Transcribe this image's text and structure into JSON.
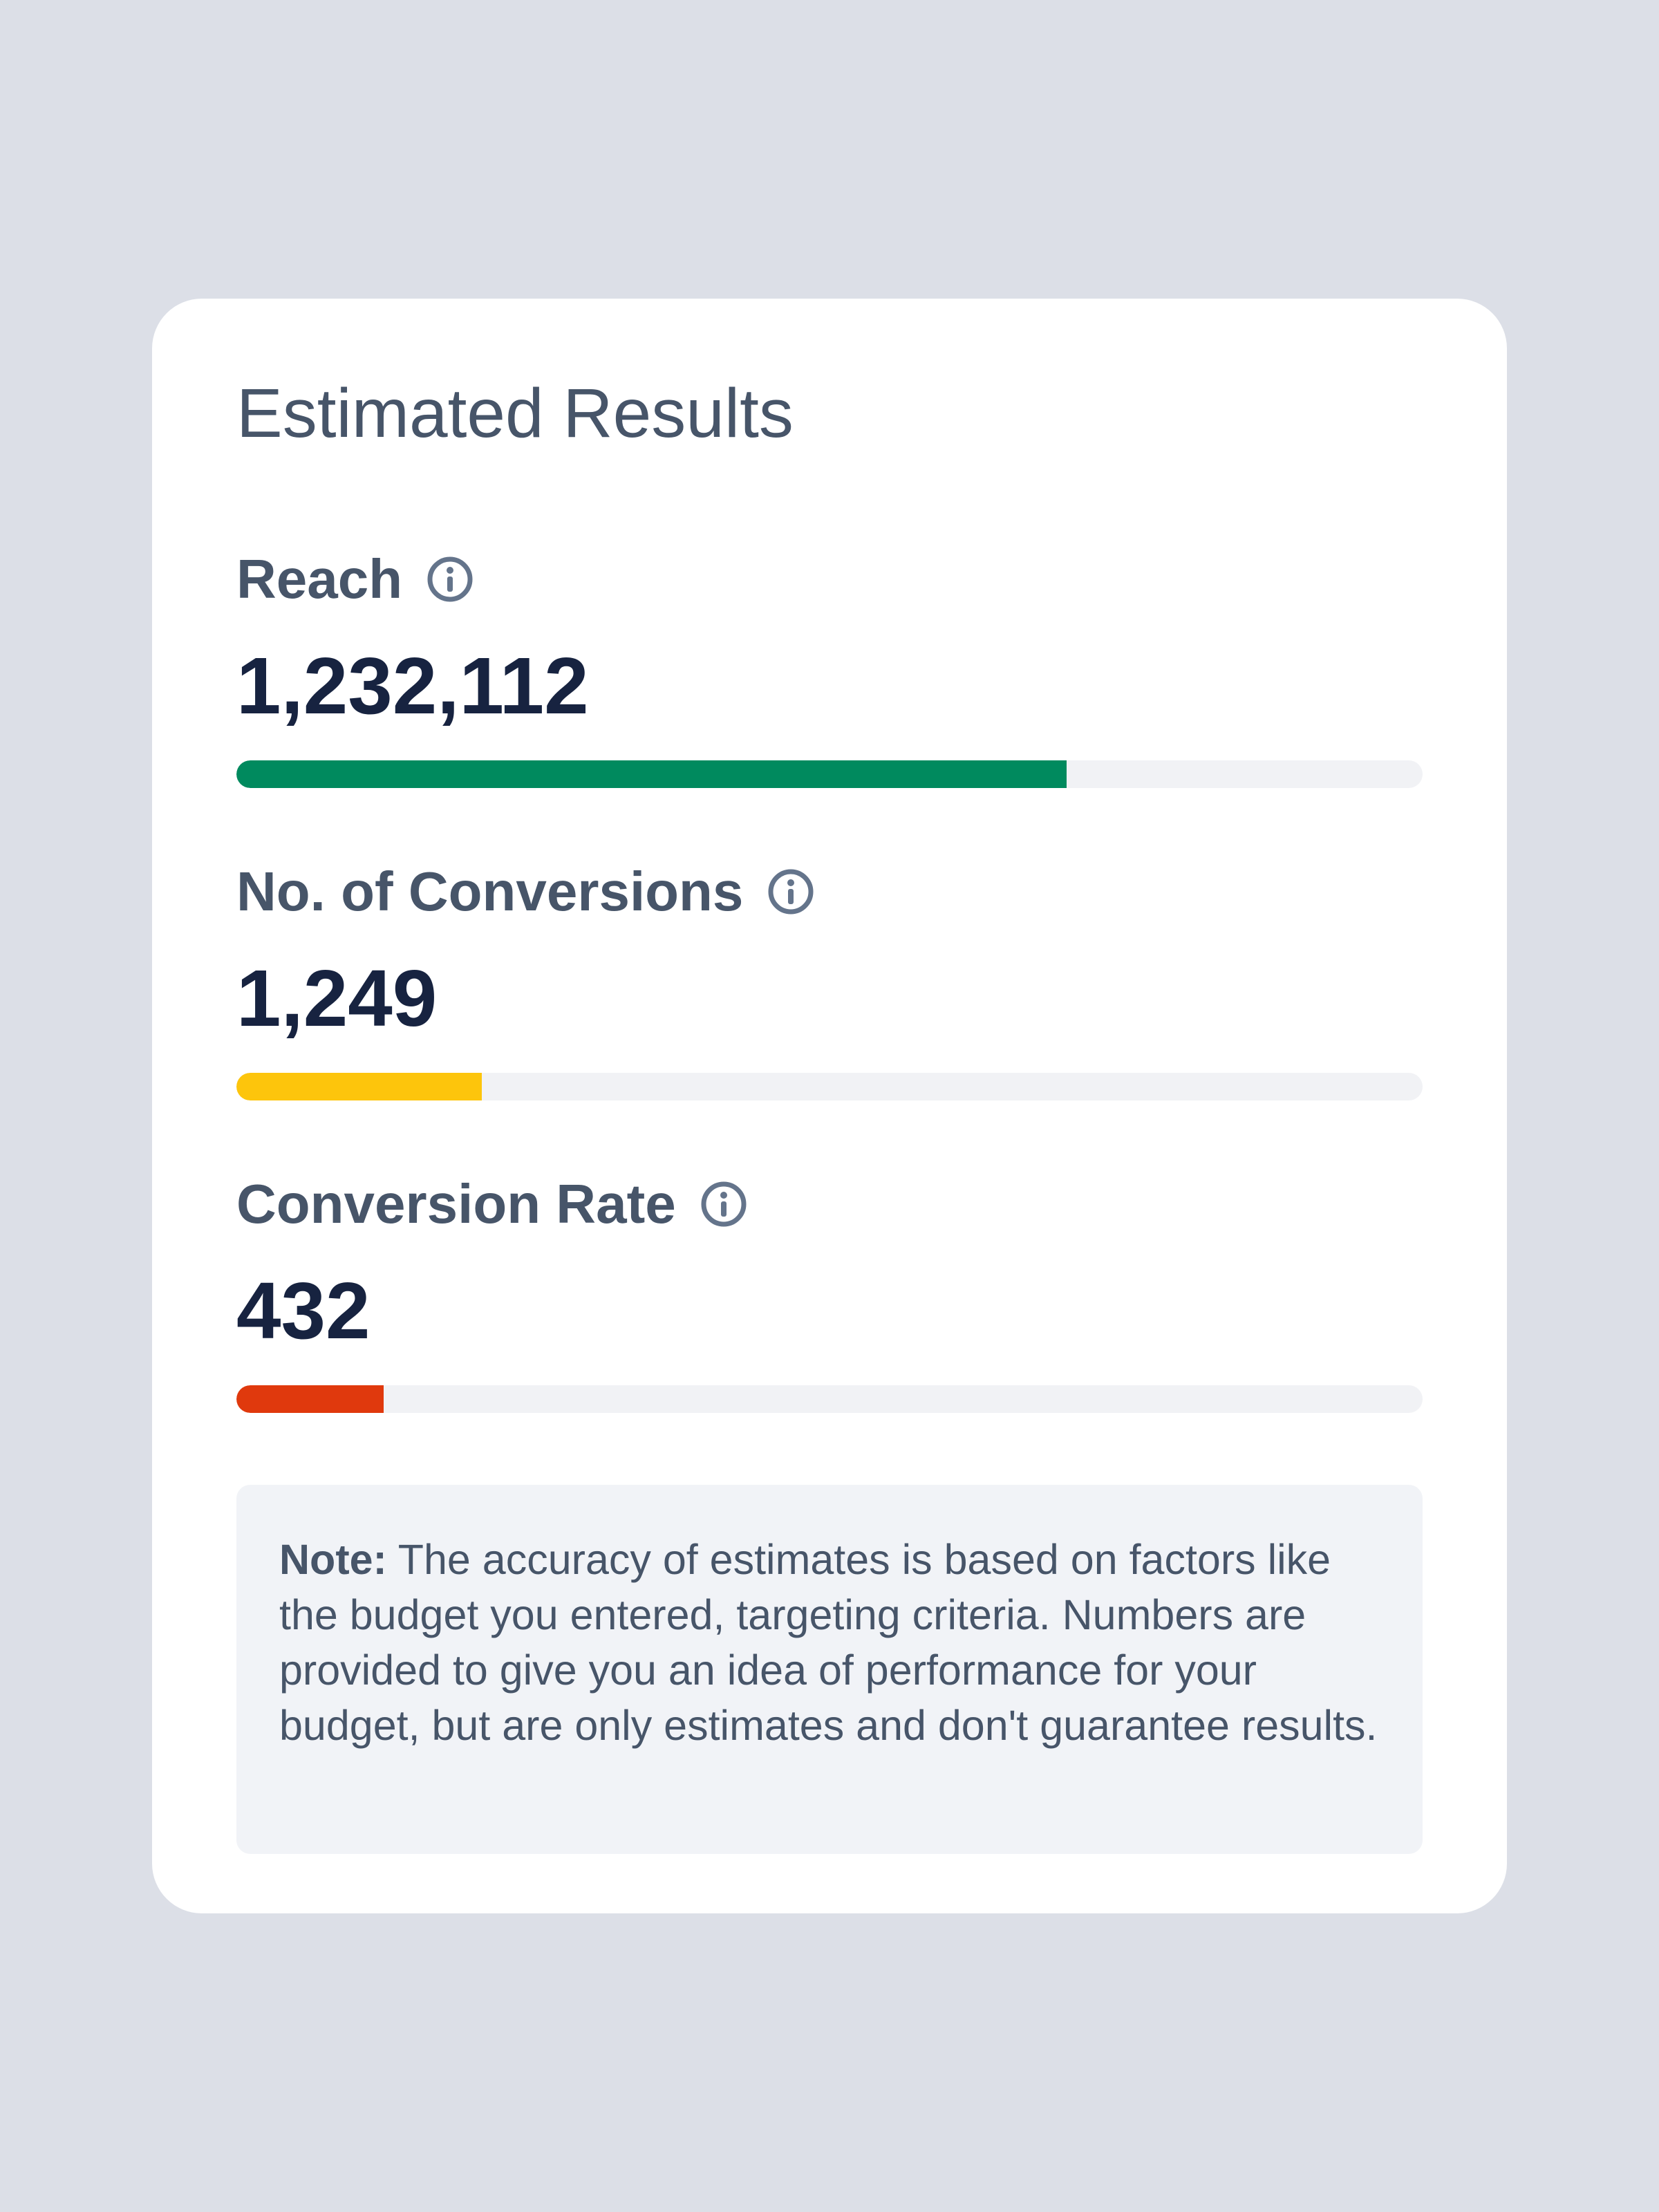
{
  "card": {
    "title": "Estimated Results"
  },
  "metrics": [
    {
      "label": "Reach",
      "icon": "info-icon",
      "value": "1,232,112",
      "progress_fraction": 0.7,
      "color": "#008a5e"
    },
    {
      "label": "No. of Conversions",
      "icon": "info-icon",
      "value": "1,249",
      "progress_fraction": 0.207,
      "color": "#fdc50c"
    },
    {
      "label": "Conversion Rate",
      "icon": "info-icon",
      "value": "432",
      "progress_fraction": 0.124,
      "color": "#e0390d"
    }
  ],
  "note": {
    "prefix": "Note:",
    "text": " The accuracy of estimates is based on factors like the budget you entered, targeting criteria. Numbers are provided to give you an idea of performance for your budget, but are only estimates and don't guarantee results."
  }
}
